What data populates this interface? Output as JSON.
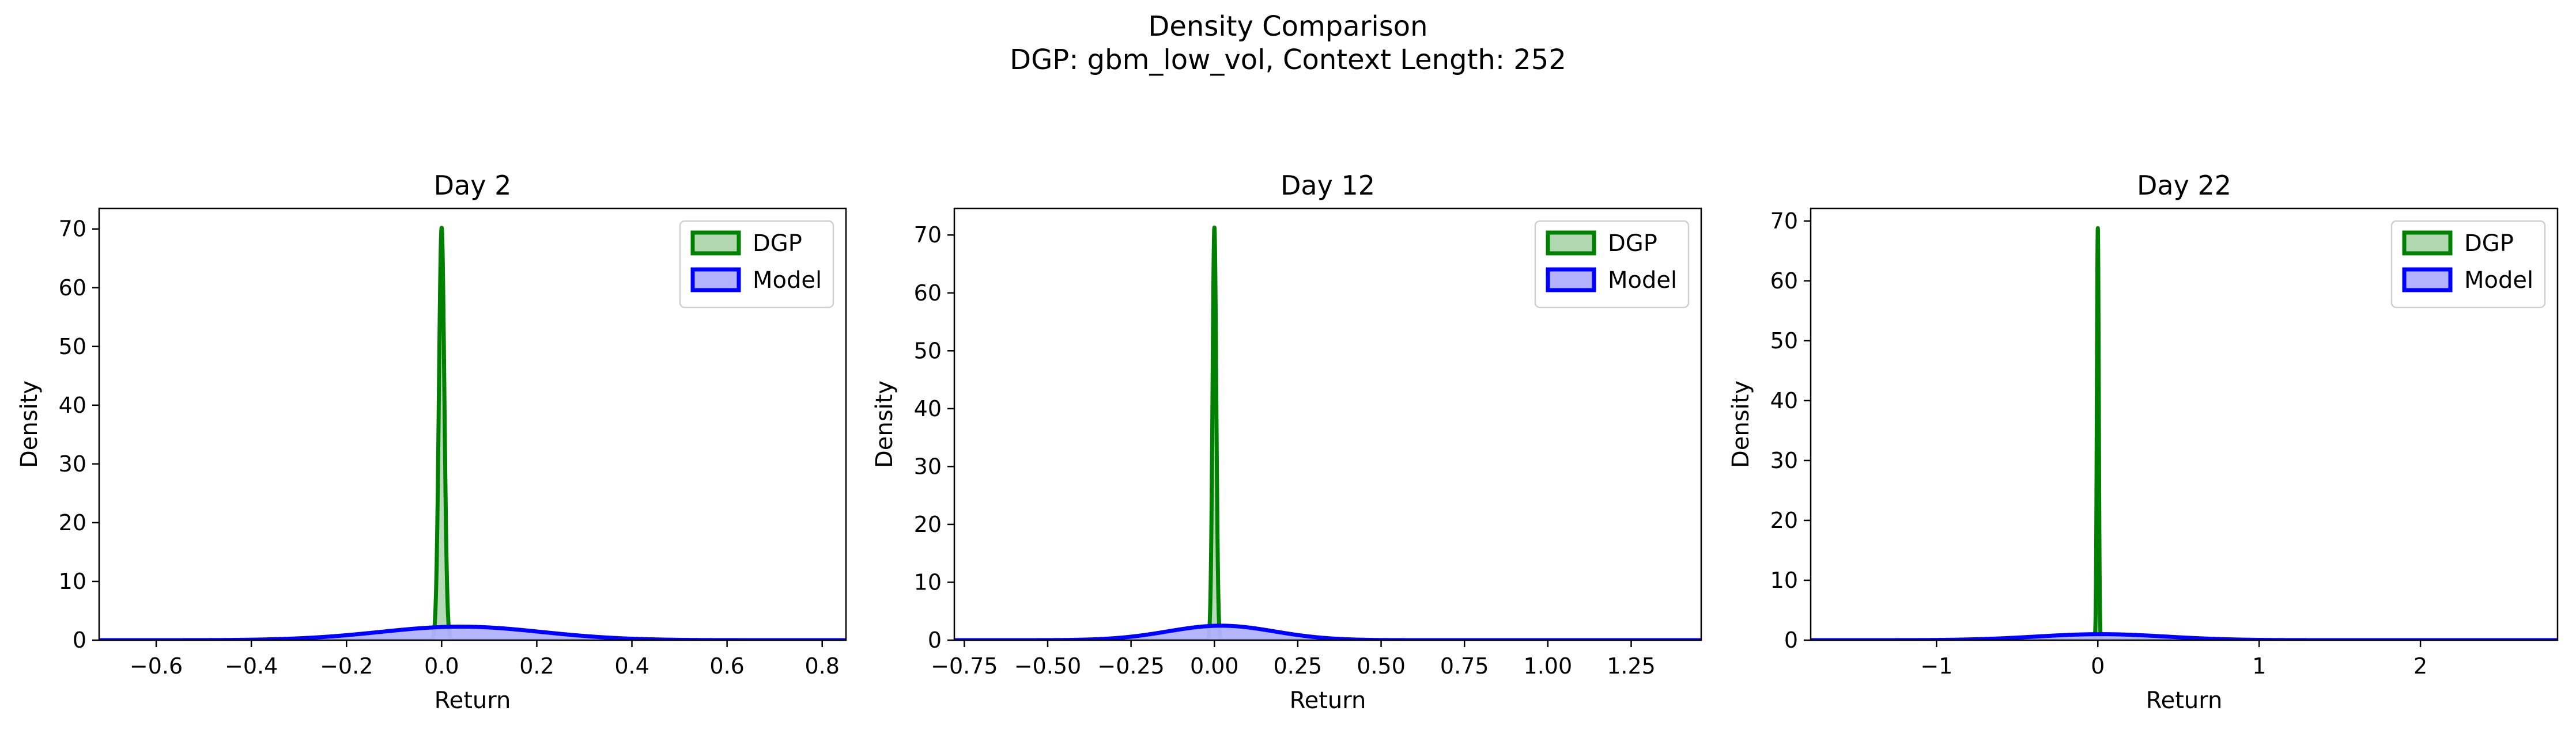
{
  "figure": {
    "title": "Density Comparison",
    "subtitle": "DGP: gbm_low_vol, Context Length: 252"
  },
  "colors": {
    "dgp_line": "#008000",
    "dgp_fill": "#b2d8b2",
    "model_line": "#0000ff",
    "model_fill": "#b2b2ff"
  },
  "chart_data": [
    {
      "type": "area",
      "title": "Day 2",
      "xlabel": "Return",
      "ylabel": "Density",
      "xlim": [
        -0.72,
        0.85
      ],
      "ylim": [
        0,
        73.5
      ],
      "xticks": [
        -0.6,
        -0.4,
        -0.2,
        0.0,
        0.2,
        0.4,
        0.6,
        0.8
      ],
      "xtick_labels": [
        "−0.6",
        "−0.4",
        "−0.2",
        "0.0",
        "0.2",
        "0.4",
        "0.6",
        "0.8"
      ],
      "yticks": [
        0,
        10,
        20,
        30,
        40,
        50,
        60,
        70
      ],
      "ytick_labels": [
        "0",
        "10",
        "20",
        "30",
        "40",
        "50",
        "60",
        "70"
      ],
      "legend_position": "top-right",
      "series": [
        {
          "name": "DGP",
          "distribution": "normal",
          "mean": 0.0,
          "std": 0.0057,
          "peak": 70.2
        },
        {
          "name": "Model",
          "distribution": "normal",
          "mean": 0.04,
          "std": 0.17,
          "peak": 2.3
        }
      ]
    },
    {
      "type": "area",
      "title": "Day 12",
      "xlabel": "Return",
      "ylabel": "Density",
      "xlim": [
        -0.78,
        1.46
      ],
      "ylim": [
        0,
        74.6
      ],
      "xticks": [
        -0.75,
        -0.5,
        -0.25,
        0.0,
        0.25,
        0.5,
        0.75,
        1.0,
        1.25
      ],
      "xtick_labels": [
        "−0.75",
        "−0.50",
        "−0.25",
        "0.00",
        "0.25",
        "0.50",
        "0.75",
        "1.00",
        "1.25"
      ],
      "yticks": [
        0,
        10,
        20,
        30,
        40,
        50,
        60,
        70
      ],
      "ytick_labels": [
        "0",
        "10",
        "20",
        "30",
        "40",
        "50",
        "60",
        "70"
      ],
      "legend_position": "top-right",
      "series": [
        {
          "name": "DGP",
          "distribution": "normal",
          "mean": 0.0,
          "std": 0.0056,
          "peak": 71.3
        },
        {
          "name": "Model",
          "distribution": "normal",
          "mean": 0.02,
          "std": 0.16,
          "peak": 2.5
        }
      ]
    },
    {
      "type": "area",
      "title": "Day 22",
      "xlabel": "Return",
      "ylabel": "Density",
      "xlim": [
        -1.78,
        2.85
      ],
      "ylim": [
        0,
        72.1
      ],
      "xticks": [
        -1,
        0,
        1,
        2
      ],
      "xtick_labels": [
        "−1",
        "0",
        "1",
        "2"
      ],
      "yticks": [
        0,
        10,
        20,
        30,
        40,
        50,
        60,
        70
      ],
      "ytick_labels": [
        "0",
        "10",
        "20",
        "30",
        "40",
        "50",
        "60",
        "70"
      ],
      "legend_position": "top-right",
      "series": [
        {
          "name": "DGP",
          "distribution": "normal",
          "mean": 0.0,
          "std": 0.0058,
          "peak": 68.8
        },
        {
          "name": "Model",
          "distribution": "normal",
          "mean": 0.02,
          "std": 0.4,
          "peak": 1.0
        }
      ]
    }
  ]
}
